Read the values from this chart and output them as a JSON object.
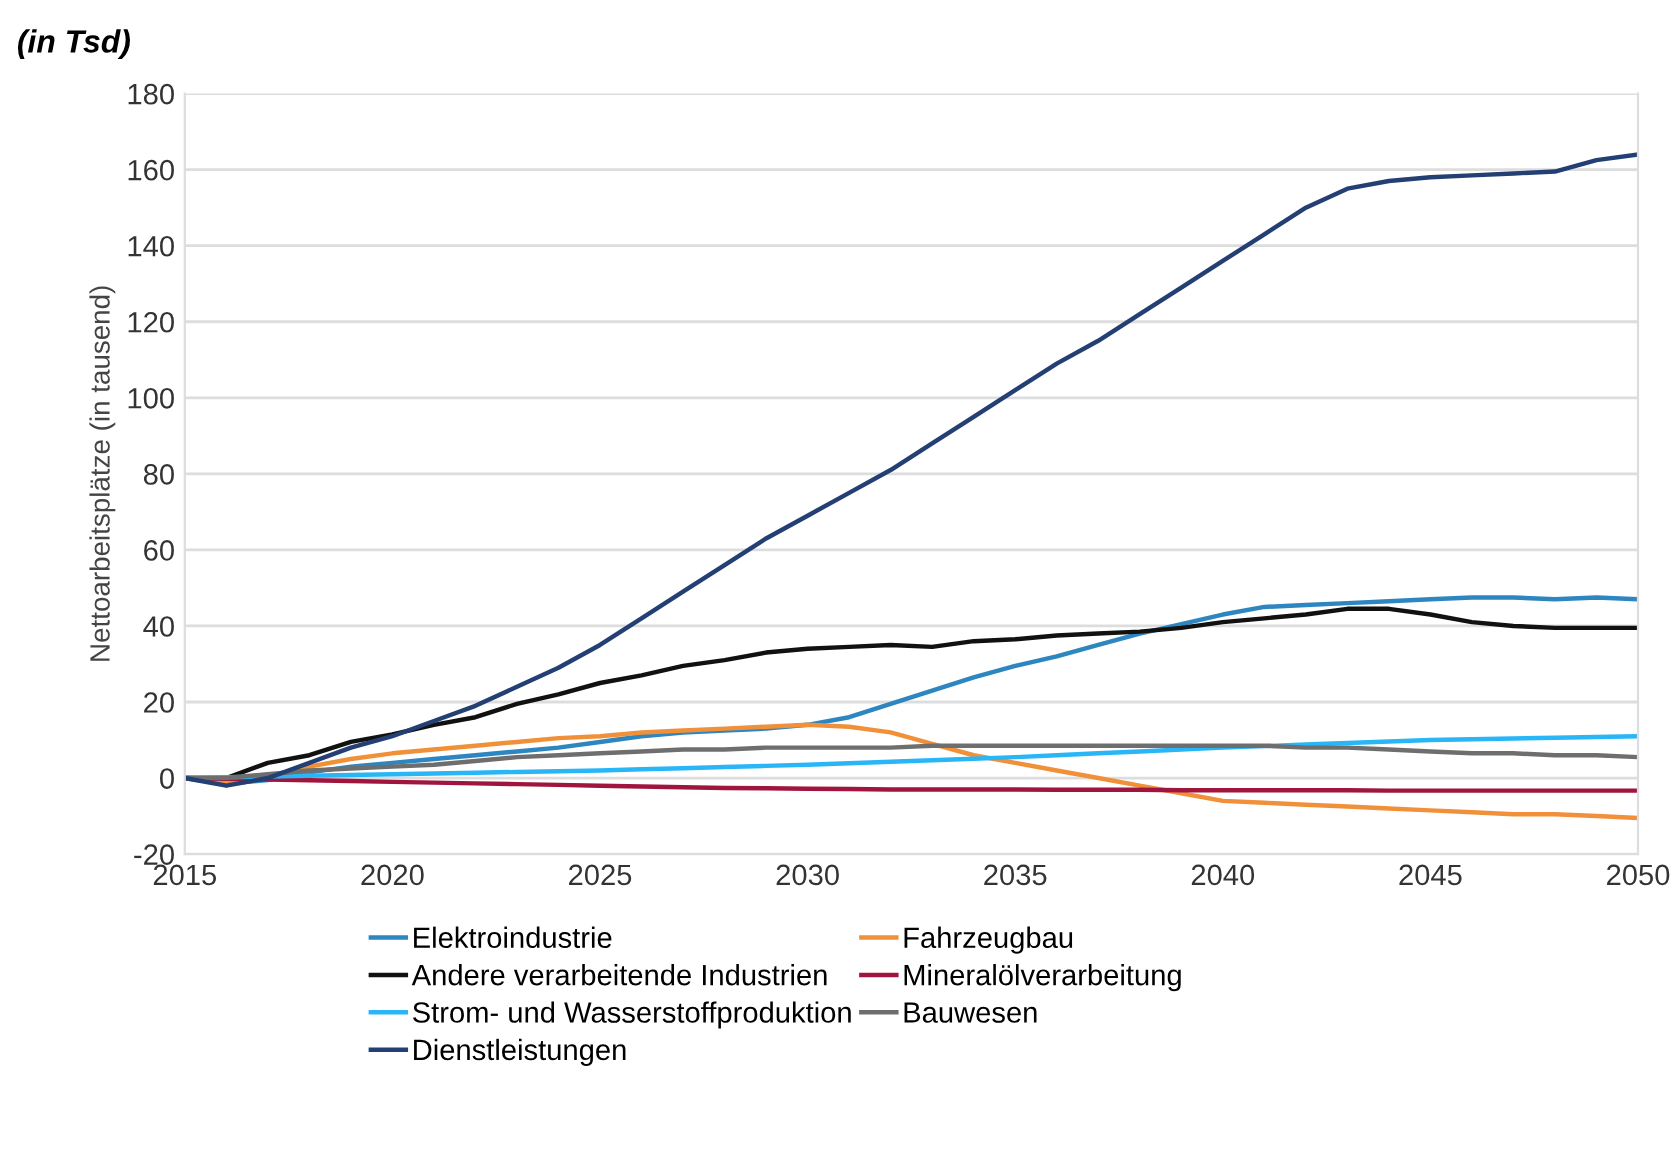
{
  "chart_data": {
    "type": "line",
    "title": "(in Tsd)",
    "ylabel": "Nettoarbeitsplätze (in tausend)",
    "x": [
      2015,
      2016,
      2017,
      2018,
      2019,
      2020,
      2021,
      2022,
      2023,
      2024,
      2025,
      2026,
      2027,
      2028,
      2029,
      2030,
      2031,
      2032,
      2033,
      2034,
      2035,
      2036,
      2037,
      2038,
      2039,
      2040,
      2041,
      2042,
      2043,
      2044,
      2045,
      2046,
      2047,
      2048,
      2049,
      2050
    ],
    "xlim": [
      2015,
      2050
    ],
    "xticks": [
      2015,
      2020,
      2025,
      2030,
      2035,
      2040,
      2045,
      2050
    ],
    "ylim": [
      -20,
      180
    ],
    "yticks": [
      -20,
      0,
      20,
      40,
      60,
      80,
      100,
      120,
      140,
      160,
      180
    ],
    "grid": "y",
    "legend": "bottom",
    "marker": "none",
    "line_style": "solid",
    "series": [
      {
        "name": "Elektroindustrie",
        "color": "#2e86c1",
        "values": [
          0,
          -1.5,
          -0.5,
          1.5,
          3,
          4,
          5,
          6,
          7,
          8,
          9.5,
          11,
          12,
          12.5,
          13,
          14,
          16,
          19.5,
          23,
          26.5,
          29.5,
          32,
          35,
          38,
          40.5,
          43,
          45,
          45.5,
          46,
          46.5,
          47,
          47.5,
          47.5,
          47,
          47.5,
          47
        ]
      },
      {
        "name": "Fahrzeugbau",
        "color": "#f0913a",
        "values": [
          0,
          -1,
          0,
          3,
          5,
          6.5,
          7.5,
          8.5,
          9.5,
          10.5,
          11,
          12,
          12.5,
          13,
          13.5,
          14,
          13.5,
          12,
          9,
          6,
          4,
          2,
          0,
          -2,
          -4,
          -6,
          -6.5,
          -7,
          -7.5,
          -8,
          -8.5,
          -9,
          -9.5,
          -9.5,
          -10,
          -10.5
        ]
      },
      {
        "name": "Andere verarbeitende Industrien",
        "color": "#111111",
        "values": [
          0,
          0,
          4,
          6,
          9.5,
          11.5,
          14,
          16,
          19.5,
          22,
          25,
          27,
          29.5,
          31,
          33,
          34,
          34.5,
          35,
          34.5,
          36,
          36.5,
          37.5,
          38,
          38.5,
          39.5,
          41,
          42,
          43,
          44.5,
          44.5,
          43,
          41,
          40,
          39.5,
          39.5,
          39.5
        ]
      },
      {
        "name": "Mineralölverarbeitung",
        "color": "#a0153e",
        "values": [
          0,
          -0.2,
          -0.4,
          -0.6,
          -0.8,
          -1,
          -1.2,
          -1.4,
          -1.6,
          -1.8,
          -2,
          -2.2,
          -2.4,
          -2.6,
          -2.7,
          -2.8,
          -2.9,
          -3,
          -3,
          -3,
          -3,
          -3.1,
          -3.1,
          -3.1,
          -3.2,
          -3.2,
          -3.2,
          -3.2,
          -3.2,
          -3.3,
          -3.3,
          -3.3,
          -3.3,
          -3.3,
          -3.3,
          -3.3
        ]
      },
      {
        "name": "Strom- und Wasserstoffproduktion",
        "color": "#29b6f6",
        "values": [
          0,
          0.2,
          0.4,
          0.6,
          0.8,
          1,
          1.2,
          1.4,
          1.6,
          1.8,
          2,
          2.3,
          2.6,
          2.9,
          3.2,
          3.5,
          3.9,
          4.3,
          4.7,
          5.1,
          5.5,
          6,
          6.5,
          7,
          7.5,
          8,
          8.4,
          8.8,
          9.2,
          9.6,
          10,
          10.2,
          10.4,
          10.6,
          10.8,
          11
        ]
      },
      {
        "name": "Bauwesen",
        "color": "#6e6e6e",
        "values": [
          0,
          0,
          1,
          2,
          2.5,
          3,
          3.5,
          4.5,
          5.5,
          6,
          6.5,
          7,
          7.5,
          7.5,
          8,
          8,
          8,
          8,
          8.5,
          8.5,
          8.5,
          8.5,
          8.5,
          8.5,
          8.5,
          8.5,
          8.5,
          8,
          8,
          7.5,
          7,
          6.5,
          6.5,
          6,
          6,
          5.5
        ]
      },
      {
        "name": "Dienstleistungen",
        "color": "#243f73",
        "values": [
          0,
          -2,
          0,
          4,
          8,
          11,
          15,
          19,
          24,
          29,
          35,
          42,
          49,
          56,
          63,
          69,
          75,
          81,
          88,
          95,
          102,
          109,
          115,
          122,
          129,
          136,
          143,
          150,
          155,
          157,
          158,
          158.5,
          159,
          159.5,
          162.5,
          164
        ]
      }
    ]
  }
}
